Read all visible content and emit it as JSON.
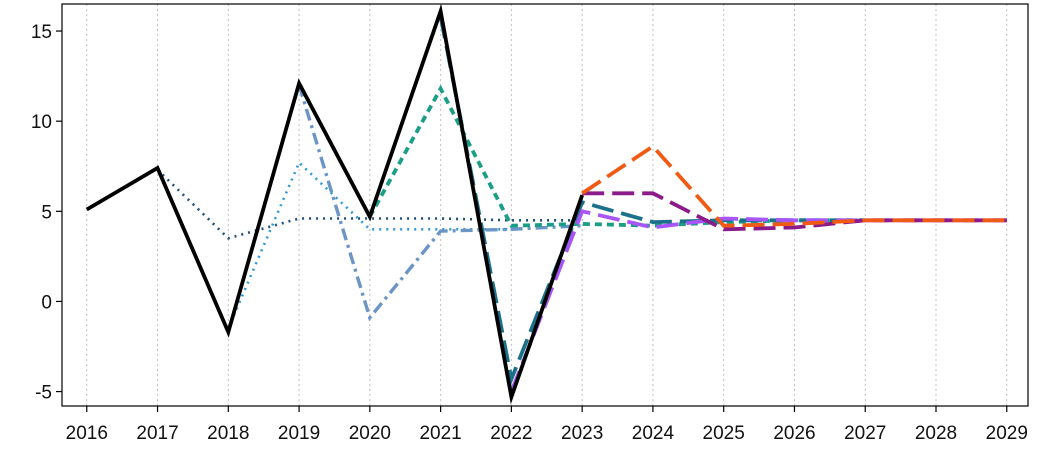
{
  "chart_data": {
    "type": "line",
    "title": "",
    "xlabel": "",
    "ylabel": "",
    "x": [
      2016,
      2017,
      2018,
      2019,
      2020,
      2021,
      2022,
      2023,
      2024,
      2025,
      2026,
      2027,
      2028,
      2029
    ],
    "x_tick_labels": [
      "2016",
      "2017",
      "2018",
      "2019",
      "2020",
      "2021",
      "2022",
      "2023",
      "2024",
      "2025",
      "2026",
      "2027",
      "2028",
      "2029"
    ],
    "y_ticks": [
      -5,
      0,
      5,
      10,
      15
    ],
    "y_tick_labels": [
      "-5",
      "0",
      "5",
      "10",
      "15"
    ],
    "ylim": [
      -5.8,
      16.5
    ],
    "xlim": [
      2015.65,
      2029.3
    ],
    "grid": "vertical dotted",
    "legend": "none",
    "series": [
      {
        "color": "#1f4e79",
        "dash": "dotted",
        "points": [
          [
            2017,
            7.3
          ],
          [
            2018,
            3.5
          ],
          [
            2019,
            4.6
          ],
          [
            2020,
            4.6
          ],
          [
            2021,
            4.6
          ],
          [
            2022,
            4.5
          ],
          [
            2023,
            4.5
          ]
        ]
      },
      {
        "color": "#2e9bd6",
        "dash": "dotted",
        "points": [
          [
            2018,
            -1.5
          ],
          [
            2019,
            7.7
          ],
          [
            2020,
            4.0
          ],
          [
            2021,
            4.0
          ],
          [
            2022,
            4.0
          ]
        ]
      },
      {
        "color": "#6b95c4",
        "dash": "dashdot",
        "points": [
          [
            2019,
            12.0
          ],
          [
            2020,
            -0.9
          ],
          [
            2021,
            3.9
          ],
          [
            2022,
            4.0
          ],
          [
            2023,
            4.2
          ]
        ]
      },
      {
        "color": "#1a9e85",
        "dash": "shortdash",
        "points": [
          [
            2020,
            4.7
          ],
          [
            2021,
            11.8
          ],
          [
            2022,
            4.2
          ],
          [
            2023,
            4.3
          ],
          [
            2024,
            4.2
          ],
          [
            2025,
            4.4
          ],
          [
            2026,
            4.5
          ],
          [
            2027,
            4.5
          ]
        ]
      },
      {
        "color": "#1b7189",
        "dash": "longdash",
        "points": [
          [
            2021,
            15.8
          ],
          [
            2022,
            -4.3
          ],
          [
            2023,
            5.5
          ],
          [
            2024,
            4.4
          ],
          [
            2025,
            4.5
          ],
          [
            2026,
            4.5
          ],
          [
            2027,
            4.5
          ]
        ]
      },
      {
        "color": "#a855f7",
        "dash": "longdash",
        "points": [
          [
            2022,
            -5.0
          ],
          [
            2023,
            5.0
          ],
          [
            2024,
            4.1
          ],
          [
            2025,
            4.6
          ],
          [
            2026,
            4.5
          ],
          [
            2027,
            4.5
          ],
          [
            2028,
            4.5
          ],
          [
            2029,
            4.5
          ]
        ]
      },
      {
        "color": "#8b1a8b",
        "dash": "longdash",
        "points": [
          [
            2023,
            6.0
          ],
          [
            2024,
            6.0
          ],
          [
            2025,
            4.0
          ],
          [
            2026,
            4.1
          ],
          [
            2027,
            4.5
          ],
          [
            2028,
            4.5
          ],
          [
            2029,
            4.5
          ]
        ]
      },
      {
        "color": "#f05a14",
        "dash": "longdash",
        "points": [
          [
            2023,
            6.0
          ],
          [
            2024,
            8.6
          ],
          [
            2025,
            4.2
          ],
          [
            2026,
            4.3
          ],
          [
            2027,
            4.5
          ],
          [
            2028,
            4.5
          ],
          [
            2029,
            4.5
          ]
        ]
      },
      {
        "color": "#000000",
        "dash": "solid",
        "points": [
          [
            2016,
            5.1
          ],
          [
            2017,
            7.4
          ],
          [
            2018,
            -1.7
          ],
          [
            2019,
            12.1
          ],
          [
            2020,
            4.7
          ],
          [
            2021,
            16.1
          ],
          [
            2022,
            -5.3
          ],
          [
            2023,
            5.9
          ]
        ]
      }
    ]
  }
}
